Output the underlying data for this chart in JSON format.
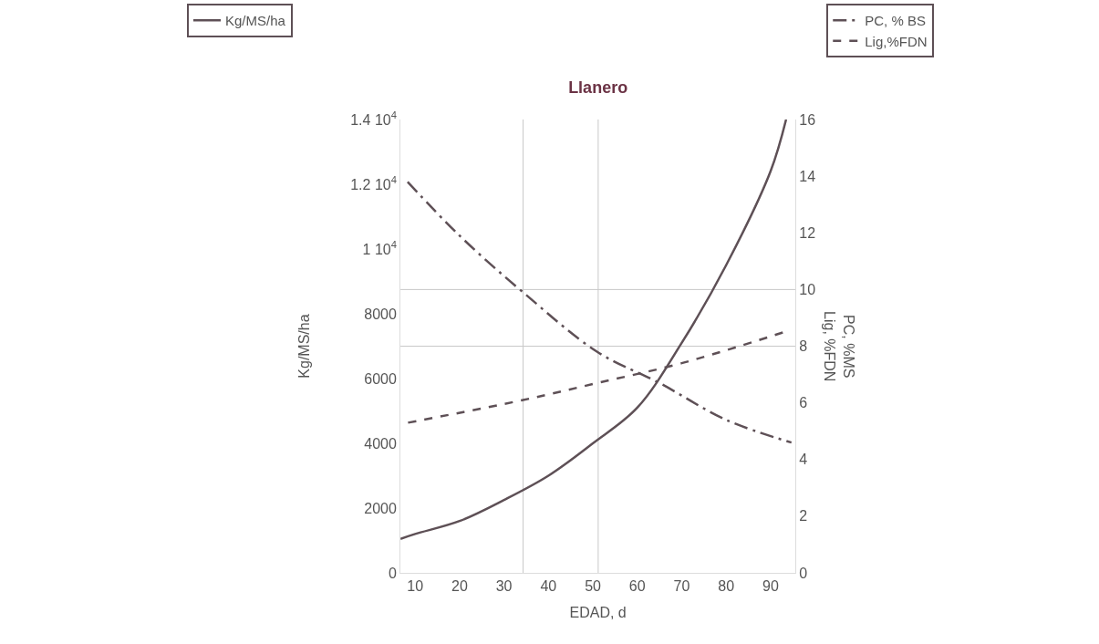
{
  "chart_data": {
    "type": "line",
    "title": "Llanero",
    "xlabel": "EDAD, d",
    "ylabel": "Kg/MS/ha",
    "y2label": "PC, %MS\nLig, %FDN",
    "series": [
      {
        "name": "Kg/MS/ha",
        "color": "#5e5056",
        "line_style": "solid",
        "x": [
          6.7,
          10,
          20,
          30,
          40,
          50,
          60,
          70,
          80,
          90,
          93.5
        ],
        "values": [
          1050,
          1200,
          1600,
          2250,
          3000,
          4000,
          5100,
          7100,
          9500,
          12400,
          14000
        ]
      },
      {
        "name": "PC, % BS",
        "color": "#5e5056",
        "line_style": "dashdot",
        "axis": "y2",
        "x": [
          8.3,
          20,
          34.3,
          51,
          65,
          80,
          94.7
        ],
        "values": [
          13.8,
          11.9,
          9.9,
          7.8,
          6.7,
          5.4,
          4.6
        ]
      },
      {
        "name": "Lig,%FDN",
        "color": "#5e5056",
        "line_style": "dashed",
        "axis": "y2",
        "x": [
          8.4,
          34.3,
          51,
          70,
          93.1
        ],
        "values": [
          5.3,
          6.1,
          6.7,
          7.4,
          8.5
        ]
      }
    ],
    "xlim": [
      6.7,
      95.6
    ],
    "xticks": [
      10,
      20,
      30,
      40,
      50,
      60,
      70,
      80,
      90
    ],
    "ylim": [
      0,
      14000
    ],
    "yticks": [
      0,
      2000,
      4000,
      6000,
      8000,
      {
        "value": 10000,
        "label": "1 10$^{4}$"
      },
      {
        "value": 12000,
        "label": "1.2 10$^{4}$"
      },
      {
        "value": 14000,
        "label": "1.4 10$^{4}$"
      }
    ],
    "y2lim": [
      0,
      16
    ],
    "y2ticks": [
      0,
      2,
      4,
      6,
      8,
      10,
      12,
      14,
      16
    ],
    "ref_lines": [
      {
        "axis": "x",
        "value": 34.3,
        "color": "#c8c8c8"
      },
      {
        "axis": "x",
        "value": 51.2,
        "color": "#c8c8c8"
      },
      {
        "axis": "y2",
        "value": 8,
        "color": "#c8c8c8"
      },
      {
        "axis": "y2",
        "value": 10,
        "color": "#c8c8c8"
      }
    ],
    "grid": false,
    "legend": "top",
    "marker": "none"
  }
}
